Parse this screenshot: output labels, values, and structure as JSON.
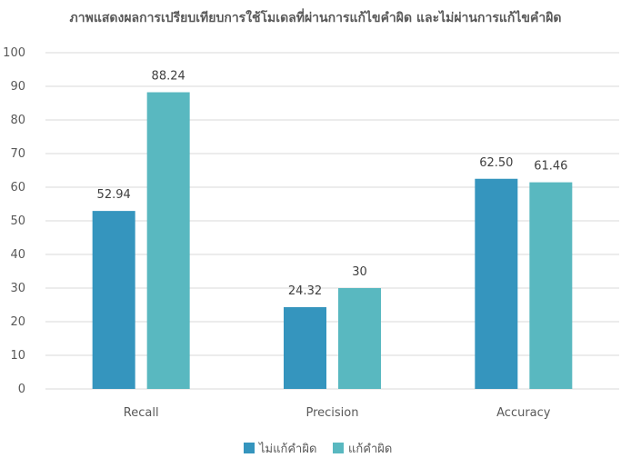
{
  "chart_data": {
    "type": "bar",
    "title": "ภาพแสดงผลการเปรียบเทียบการใช้โมเดลที่ผ่านการแก้ไขคำผิด และไม่ผ่านการแก้ไขคำผิด",
    "categories": [
      "Recall",
      "Precision",
      "Accuracy"
    ],
    "series": [
      {
        "name": "ไม่แก้คำผิด",
        "color": "#3595BE",
        "values": [
          52.94,
          24.32,
          62.5
        ],
        "labels": [
          "52.94",
          "24.32",
          "62.50"
        ]
      },
      {
        "name": "แก้คำผิด",
        "color": "#59B8C0",
        "values": [
          88.24,
          30,
          61.46
        ],
        "labels": [
          "88.24",
          "30",
          "61.46"
        ]
      }
    ],
    "ylim": [
      0,
      100
    ],
    "yticks": [
      "0",
      "10",
      "20",
      "30",
      "40",
      "50",
      "60",
      "70",
      "80",
      "90",
      "100"
    ],
    "grid": true,
    "legend": "bottom",
    "gridColor": "#D9D9D9"
  }
}
